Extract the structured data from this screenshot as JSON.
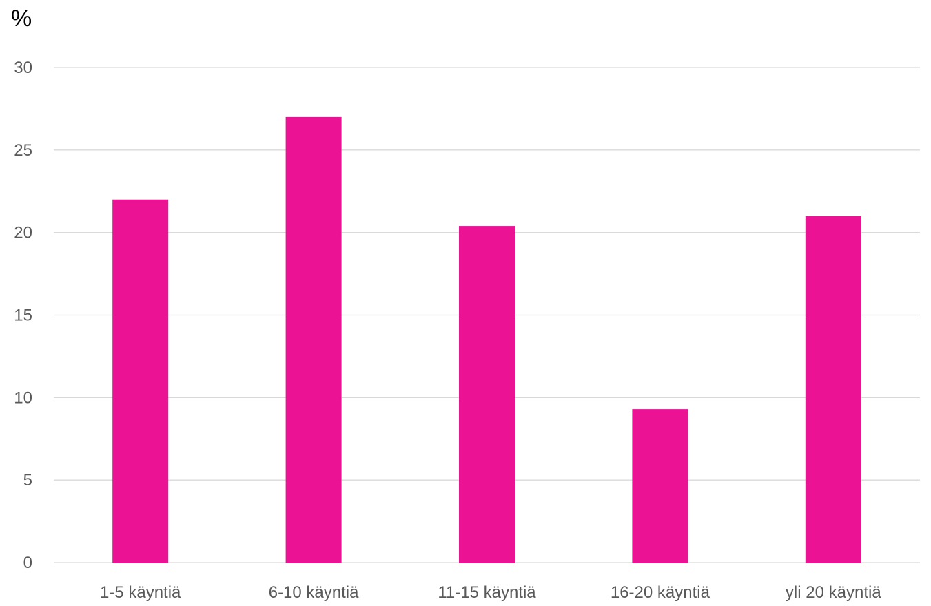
{
  "chart_data": {
    "type": "bar",
    "ylabel": "%",
    "categories": [
      "1-5 käyntiä",
      "6-10 käyntiä",
      "11-15 käyntiä",
      "16-20 käyntiä",
      "yli 20 käyntiä"
    ],
    "values": [
      22,
      27,
      20.4,
      9.3,
      21
    ],
    "ylim": [
      0,
      30
    ],
    "yticks": [
      0,
      5,
      10,
      15,
      20,
      25,
      30
    ],
    "grid": true,
    "legend": "none",
    "bar_color": "#EC1294",
    "grid_color": "#D9D9D9",
    "text_color": "#595959"
  }
}
